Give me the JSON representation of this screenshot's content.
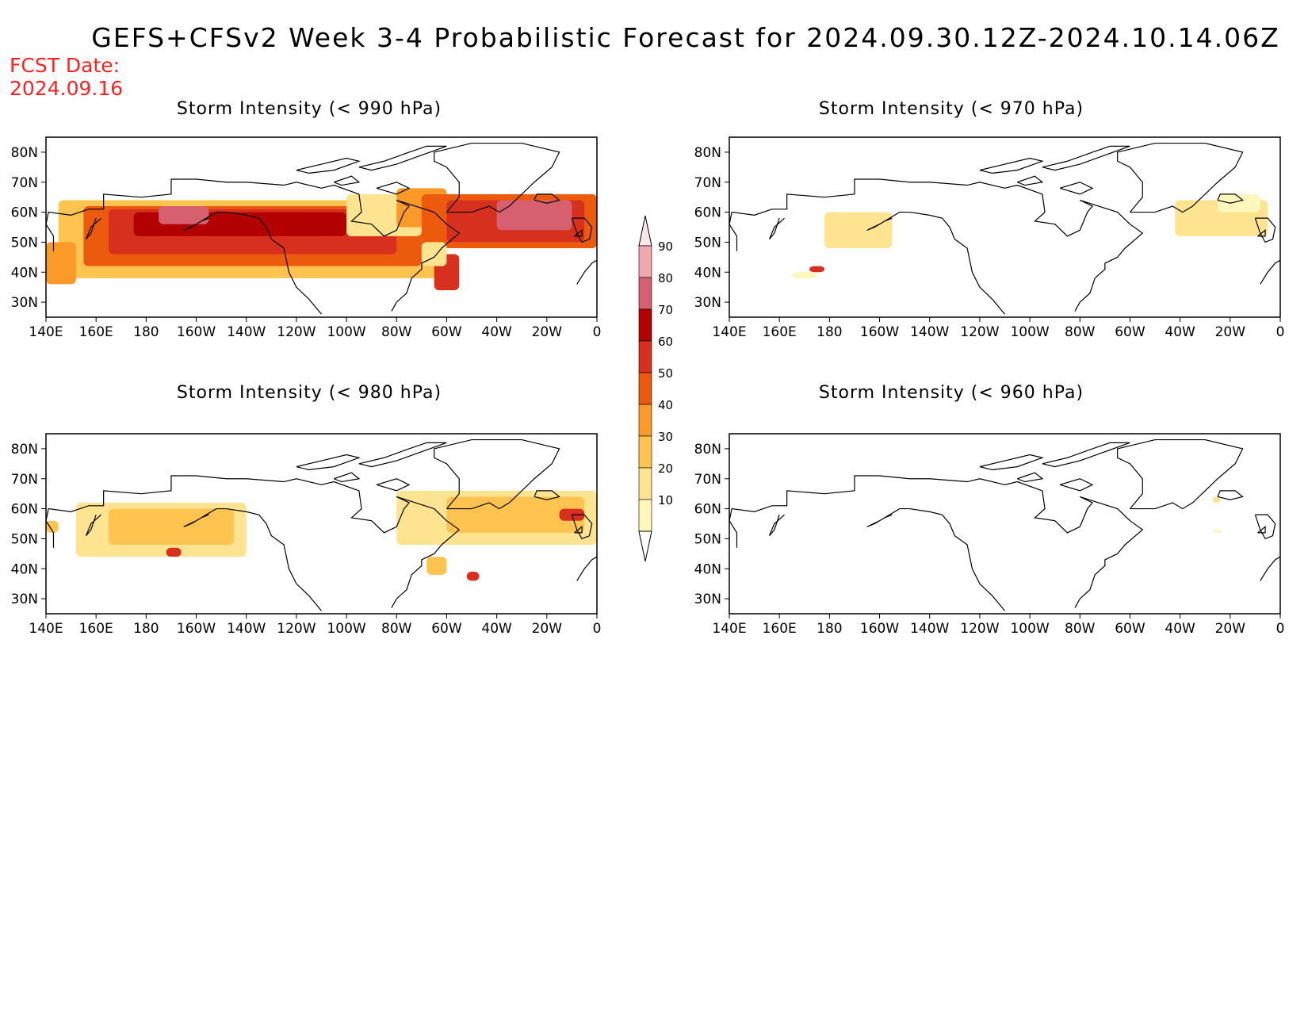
{
  "title": "GEFS+CFSv2 Week 3-4 Probabilistic Forecast for 2024.09.30.12Z-2024.10.14.06Z",
  "fcst_date_label": "FCST Date:",
  "fcst_date_value": "2024.09.16",
  "colors": {
    "10": "#fff7bc",
    "20": "#fee391",
    "30": "#fec44f",
    "40": "#fb9a29",
    "50": "#ec5a0e",
    "60": "#d7301f",
    "70": "#b30000",
    "80": "#d76070",
    "90": "#f0a8b0",
    "fcst_date": "#ff2020"
  },
  "lat_labels": [
    "80N",
    "70N",
    "60N",
    "50N",
    "40N",
    "30N"
  ],
  "lon_labels": [
    "140E",
    "160E",
    "180",
    "160W",
    "140W",
    "120W",
    "100W",
    "80W",
    "60W",
    "40W",
    "20W",
    "0"
  ],
  "colorbar_levels": [
    "10",
    "20",
    "30",
    "40",
    "50",
    "60",
    "70",
    "80",
    "90"
  ],
  "panels": [
    {
      "id": "p990",
      "title": "Storm Intensity (< 990 hPa)",
      "regions": [
        {
          "lon": [
            145,
            300
          ],
          "lat": [
            38,
            64
          ],
          "level": "30"
        },
        {
          "lon": [
            155,
            290
          ],
          "lat": [
            42,
            62
          ],
          "level": "50"
        },
        {
          "lon": [
            165,
            280
          ],
          "lat": [
            46,
            61
          ],
          "level": "60"
        },
        {
          "lon": [
            175,
            260
          ],
          "lat": [
            52,
            60
          ],
          "level": "70"
        },
        {
          "lon": [
            185,
            205
          ],
          "lat": [
            56,
            62
          ],
          "level": "80"
        },
        {
          "lon": [
            140,
            152
          ],
          "lat": [
            36,
            50
          ],
          "level": "40"
        },
        {
          "lon": [
            260,
            290
          ],
          "lat": [
            52,
            66
          ],
          "level": "20"
        },
        {
          "lon": [
            280,
            300
          ],
          "lat": [
            55,
            68
          ],
          "level": "40"
        },
        {
          "lon": [
            290,
            360
          ],
          "lat": [
            48,
            66
          ],
          "level": "50"
        },
        {
          "lon": [
            300,
            355
          ],
          "lat": [
            50,
            64
          ],
          "level": "60"
        },
        {
          "lon": [
            320,
            350
          ],
          "lat": [
            54,
            64
          ],
          "level": "80"
        },
        {
          "lon": [
            295,
            305
          ],
          "lat": [
            34,
            46
          ],
          "level": "60"
        },
        {
          "lon": [
            290,
            300
          ],
          "lat": [
            42,
            50
          ],
          "level": "20"
        }
      ]
    },
    {
      "id": "p970",
      "title": "Storm Intensity (< 970 hPa)",
      "regions": [
        {
          "lon": [
            178,
            205
          ],
          "lat": [
            48,
            60
          ],
          "level": "20"
        },
        {
          "lon": [
            172,
            178
          ],
          "lat": [
            40,
            42
          ],
          "level": "60"
        },
        {
          "lon": [
            165,
            175
          ],
          "lat": [
            38,
            40
          ],
          "level": "10"
        },
        {
          "lon": [
            318,
            355
          ],
          "lat": [
            52,
            64
          ],
          "level": "20"
        },
        {
          "lon": [
            335,
            352
          ],
          "lat": [
            60,
            66
          ],
          "level": "10"
        }
      ]
    },
    {
      "id": "p980",
      "title": "Storm Intensity (< 980 hPa)",
      "regions": [
        {
          "lon": [
            152,
            220
          ],
          "lat": [
            44,
            62
          ],
          "level": "20"
        },
        {
          "lon": [
            165,
            215
          ],
          "lat": [
            48,
            60
          ],
          "level": "30"
        },
        {
          "lon": [
            188,
            194
          ],
          "lat": [
            44,
            47
          ],
          "level": "60"
        },
        {
          "lon": [
            140,
            145
          ],
          "lat": [
            52,
            56
          ],
          "level": "30"
        },
        {
          "lon": [
            280,
            360
          ],
          "lat": [
            48,
            66
          ],
          "level": "20"
        },
        {
          "lon": [
            300,
            355
          ],
          "lat": [
            52,
            64
          ],
          "level": "30"
        },
        {
          "lon": [
            345,
            355
          ],
          "lat": [
            56,
            60
          ],
          "level": "60"
        },
        {
          "lon": [
            292,
            300
          ],
          "lat": [
            38,
            44
          ],
          "level": "30"
        },
        {
          "lon": [
            308,
            313
          ],
          "lat": [
            36,
            39
          ],
          "level": "60"
        }
      ]
    },
    {
      "id": "p960",
      "title": "Storm Intensity (< 960 hPa)",
      "regions": [
        {
          "lon": [
            333,
            336
          ],
          "lat": [
            62,
            64
          ],
          "level": "20"
        },
        {
          "lon": [
            333,
            337
          ],
          "lat": [
            52,
            53
          ],
          "level": "10"
        }
      ]
    }
  ]
}
